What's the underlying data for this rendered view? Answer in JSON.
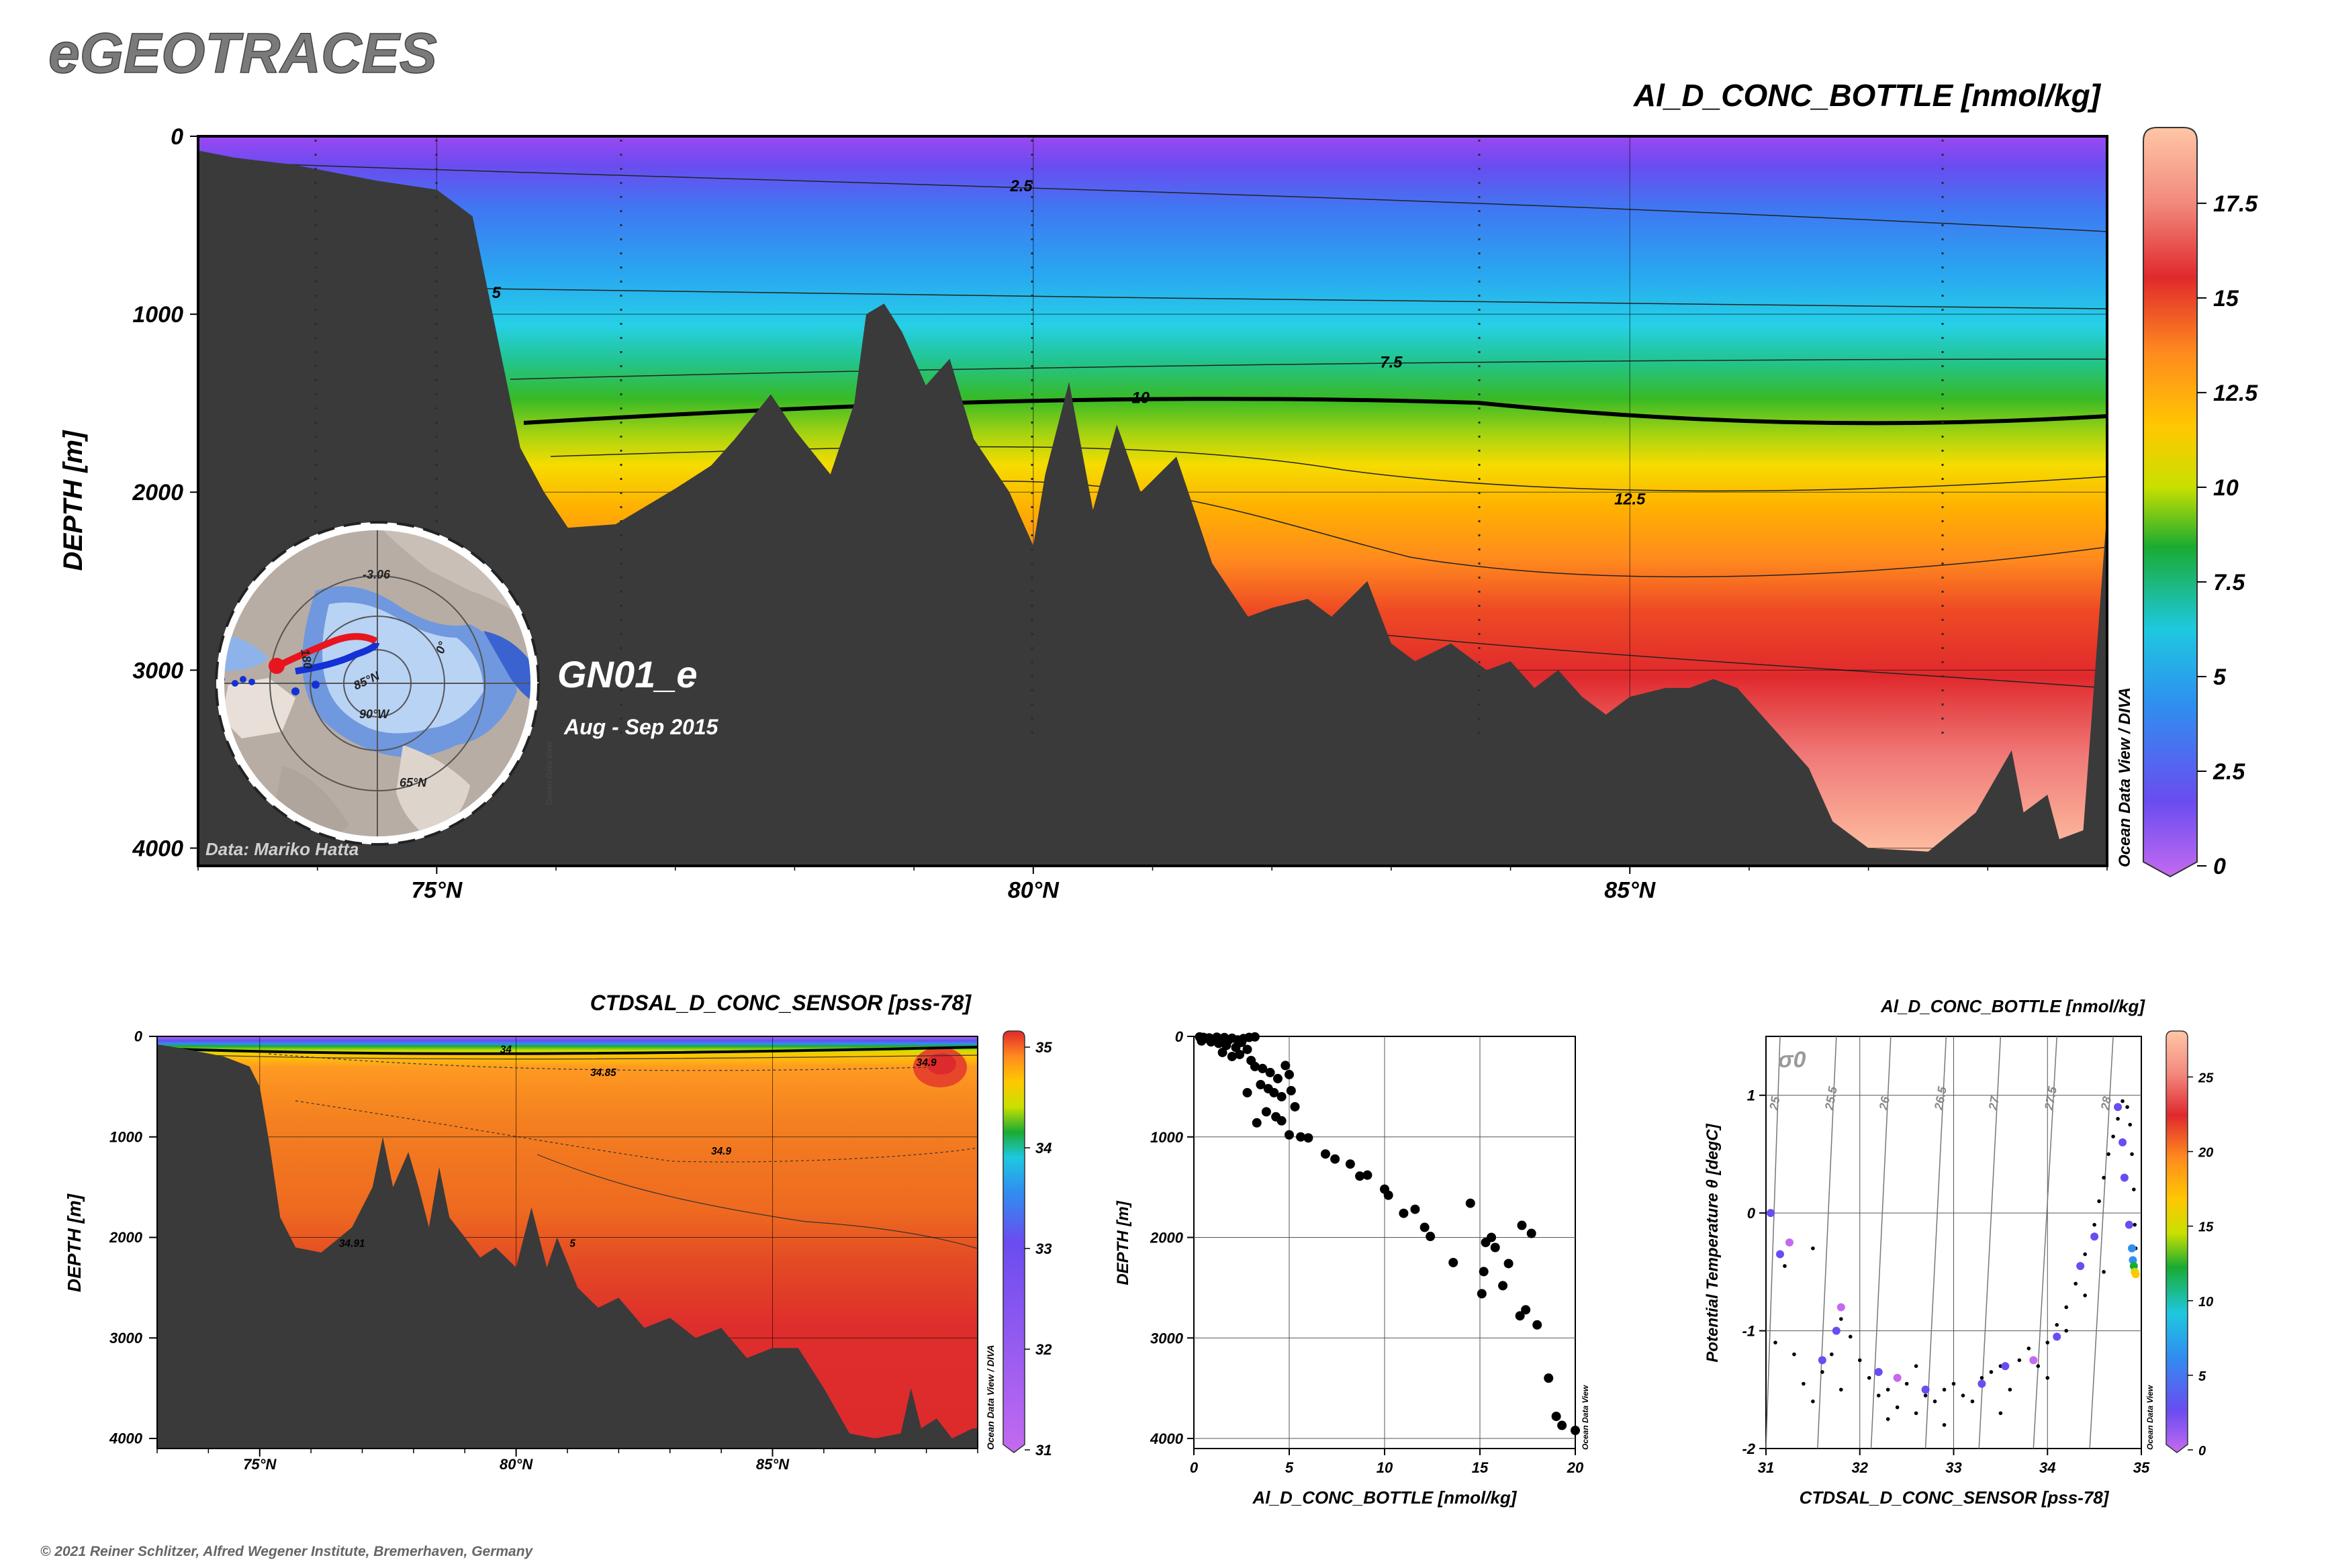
{
  "header": {
    "brand": "eGEOTRACES",
    "copyright": "© 2021 Reiner Schlitzer, Alfred Wegener Institute, Bremerhaven, Germany"
  },
  "colors": {
    "land": "#3a3a3a",
    "palette": [
      "#ffc6a6",
      "#f28a7e",
      "#e0292d",
      "#ff8a1e",
      "#ffc800",
      "#c8e000",
      "#1aab32",
      "#1ec8e0",
      "#2f8ff0",
      "#6a4cf0",
      "#c46af0"
    ]
  },
  "main": {
    "section_label": "GN01_e",
    "cruise_dates": "Aug - Sep 2015",
    "data_credit": "Data: Mariko Hatta",
    "watermark": "Ocean Data View / DIVA",
    "map_labels": [
      "-3.06",
      "180",
      "85°N",
      "90°W",
      "0°",
      "65°N"
    ],
    "map_watermark": "Ocean Data View"
  },
  "chart_data": [
    {
      "type": "heatmap",
      "title": "Al_D_CONC_BOTTLE [nmol/kg]",
      "ylabel": "DEPTH [m]",
      "xlabel": "",
      "x_ticks": [
        "75°N",
        "80°N",
        "85°N"
      ],
      "x_tick_values": [
        75,
        80,
        85
      ],
      "y_ticks": [
        "0",
        "1000",
        "2000",
        "3000",
        "4000"
      ],
      "y_tick_values": [
        0,
        1000,
        2000,
        3000,
        4000
      ],
      "xlim": [
        73,
        89
      ],
      "ylim": [
        4100,
        0
      ],
      "colorbar": {
        "ticks": [
          "0",
          "2.5",
          "5",
          "7.5",
          "10",
          "12.5",
          "15",
          "17.5"
        ],
        "min": 0,
        "max": 19.5
      },
      "contour_labels": [
        {
          "text": "2.5",
          "x": 79.9,
          "y": 270
        },
        {
          "text": "5",
          "x": 75.5,
          "y": 870
        },
        {
          "text": "7.5",
          "x": 83.0,
          "y": 1260
        },
        {
          "text": "10",
          "x": 80.9,
          "y": 1460
        },
        {
          "text": "12.5",
          "x": 85.0,
          "y": 2030
        }
      ],
      "bathymetry": [
        [
          73,
          80
        ],
        [
          73.3,
          120
        ],
        [
          73.8,
          160
        ],
        [
          74.5,
          250
        ],
        [
          75.0,
          300
        ],
        [
          75.3,
          450
        ],
        [
          75.5,
          1100
        ],
        [
          75.7,
          1750
        ],
        [
          75.9,
          2000
        ],
        [
          76.1,
          2200
        ],
        [
          76.5,
          2180
        ],
        [
          77.0,
          1980
        ],
        [
          77.3,
          1850
        ],
        [
          77.5,
          1700
        ],
        [
          77.8,
          1450
        ],
        [
          78.0,
          1650
        ],
        [
          78.3,
          1900
        ],
        [
          78.5,
          1500
        ],
        [
          78.6,
          1000
        ],
        [
          78.75,
          940
        ],
        [
          78.9,
          1100
        ],
        [
          79.1,
          1400
        ],
        [
          79.3,
          1250
        ],
        [
          79.5,
          1700
        ],
        [
          79.8,
          2000
        ],
        [
          80.0,
          2300
        ],
        [
          80.1,
          1900
        ],
        [
          80.3,
          1380
        ],
        [
          80.5,
          2100
        ],
        [
          80.7,
          1620
        ],
        [
          80.9,
          2000
        ],
        [
          81.2,
          1800
        ],
        [
          81.5,
          2400
        ],
        [
          81.8,
          2700
        ],
        [
          82.0,
          2650
        ],
        [
          82.3,
          2600
        ],
        [
          82.5,
          2700
        ],
        [
          82.8,
          2500
        ],
        [
          83.0,
          2850
        ],
        [
          83.2,
          2950
        ],
        [
          83.5,
          2850
        ],
        [
          83.8,
          3000
        ],
        [
          84.0,
          2950
        ],
        [
          84.2,
          3100
        ],
        [
          84.4,
          3000
        ],
        [
          84.6,
          3150
        ],
        [
          84.8,
          3250
        ],
        [
          85.0,
          3150
        ],
        [
          85.3,
          3100
        ],
        [
          85.5,
          3100
        ],
        [
          85.7,
          3050
        ],
        [
          85.9,
          3100
        ],
        [
          86.1,
          3250
        ],
        [
          86.3,
          3400
        ],
        [
          86.5,
          3550
        ],
        [
          86.7,
          3850
        ],
        [
          87.0,
          4000
        ],
        [
          87.5,
          4020
        ],
        [
          87.9,
          3800
        ],
        [
          88.2,
          3450
        ],
        [
          88.3,
          3800
        ],
        [
          88.5,
          3700
        ],
        [
          88.6,
          3950
        ],
        [
          88.8,
          3900
        ],
        [
          89.0,
          2100
        ]
      ]
    },
    {
      "type": "heatmap",
      "title": "CTDSAL_D_CONC_SENSOR [pss-78]",
      "ylabel": "DEPTH [m]",
      "xlabel": "",
      "x_ticks": [
        "75°N",
        "80°N",
        "85°N"
      ],
      "x_tick_values": [
        75,
        80,
        85
      ],
      "y_ticks": [
        "0",
        "1000",
        "2000",
        "3000",
        "4000"
      ],
      "y_tick_values": [
        0,
        1000,
        2000,
        3000,
        4000
      ],
      "xlim": [
        73,
        89
      ],
      "ylim": [
        4100,
        0
      ],
      "colorbar": {
        "ticks": [
          "31",
          "32",
          "33",
          "34",
          "35"
        ],
        "min": 31,
        "max": 35
      },
      "contour_labels": [
        {
          "text": "34",
          "x": 79.8,
          "y": 120
        },
        {
          "text": "34.85",
          "x": 81.7,
          "y": 350
        },
        {
          "text": "34.9",
          "x": 88.0,
          "y": 250
        },
        {
          "text": "34.9",
          "x": 84.0,
          "y": 1130
        },
        {
          "text": "34.91",
          "x": 76.8,
          "y": 2050
        },
        {
          "text": "5",
          "x": 81.1,
          "y": 2050
        }
      ],
      "bathymetry": [
        [
          73,
          80
        ],
        [
          73.5,
          120
        ],
        [
          74.3,
          200
        ],
        [
          74.8,
          300
        ],
        [
          75.0,
          500
        ],
        [
          75.2,
          1100
        ],
        [
          75.4,
          1800
        ],
        [
          75.7,
          2100
        ],
        [
          76.2,
          2150
        ],
        [
          76.8,
          1900
        ],
        [
          77.2,
          1500
        ],
        [
          77.4,
          1000
        ],
        [
          77.6,
          1500
        ],
        [
          77.9,
          1150
        ],
        [
          78.1,
          1500
        ],
        [
          78.3,
          1900
        ],
        [
          78.5,
          1300
        ],
        [
          78.7,
          1800
        ],
        [
          79.0,
          2000
        ],
        [
          79.3,
          2200
        ],
        [
          79.6,
          2100
        ],
        [
          80.0,
          2300
        ],
        [
          80.3,
          1700
        ],
        [
          80.6,
          2300
        ],
        [
          80.8,
          2000
        ],
        [
          81.2,
          2500
        ],
        [
          81.6,
          2700
        ],
        [
          82.0,
          2600
        ],
        [
          82.5,
          2900
        ],
        [
          83.0,
          2800
        ],
        [
          83.5,
          3000
        ],
        [
          84.0,
          2900
        ],
        [
          84.5,
          3200
        ],
        [
          85.0,
          3100
        ],
        [
          85.5,
          3100
        ],
        [
          86.0,
          3500
        ],
        [
          86.5,
          3950
        ],
        [
          87.0,
          4000
        ],
        [
          87.5,
          3950
        ],
        [
          87.7,
          3500
        ],
        [
          87.9,
          3900
        ],
        [
          88.2,
          3800
        ],
        [
          88.5,
          4000
        ],
        [
          88.9,
          3900
        ],
        [
          89,
          3900
        ]
      ]
    },
    {
      "type": "scatter",
      "title": "",
      "xlabel": "Al_D_CONC_BOTTLE [nmol/kg]",
      "ylabel": "DEPTH [m]",
      "xlim": [
        0,
        20
      ],
      "ylim": [
        4100,
        0
      ],
      "x_ticks": [
        "0",
        "5",
        "10",
        "15",
        "20"
      ],
      "x_tick_values": [
        0,
        5,
        10,
        15,
        20
      ],
      "y_ticks": [
        "0",
        "1000",
        "2000",
        "3000",
        "4000"
      ],
      "y_tick_values": [
        0,
        1000,
        2000,
        3000,
        4000
      ],
      "watermark": "Ocean Data View",
      "points": [
        [
          0.3,
          5
        ],
        [
          0.5,
          10
        ],
        [
          0.6,
          20
        ],
        [
          0.8,
          15
        ],
        [
          1.0,
          30
        ],
        [
          1.2,
          8
        ],
        [
          1.4,
          25
        ],
        [
          1.6,
          12
        ],
        [
          1.8,
          40
        ],
        [
          2.0,
          18
        ],
        [
          2.3,
          35
        ],
        [
          2.6,
          22
        ],
        [
          2.9,
          10
        ],
        [
          3.2,
          5
        ],
        [
          0.4,
          45
        ],
        [
          0.9,
          55
        ],
        [
          1.3,
          70
        ],
        [
          1.7,
          90
        ],
        [
          2.2,
          110
        ],
        [
          2.5,
          60
        ],
        [
          2.8,
          130
        ],
        [
          1.5,
          160
        ],
        [
          2.0,
          200
        ],
        [
          2.4,
          180
        ],
        [
          3.0,
          240
        ],
        [
          3.2,
          300
        ],
        [
          3.6,
          320
        ],
        [
          4.0,
          360
        ],
        [
          4.4,
          420
        ],
        [
          4.8,
          290
        ],
        [
          5.0,
          380
        ],
        [
          3.5,
          480
        ],
        [
          3.9,
          520
        ],
        [
          4.2,
          560
        ],
        [
          2.8,
          560
        ],
        [
          4.6,
          600
        ],
        [
          5.1,
          540
        ],
        [
          5.3,
          700
        ],
        [
          3.8,
          750
        ],
        [
          4.3,
          800
        ],
        [
          4.6,
          840
        ],
        [
          3.3,
          860
        ],
        [
          5.0,
          980
        ],
        [
          5.6,
          1000
        ],
        [
          6.0,
          1010
        ],
        [
          6.9,
          1170
        ],
        [
          7.4,
          1220
        ],
        [
          8.2,
          1270
        ],
        [
          8.7,
          1390
        ],
        [
          9.1,
          1380
        ],
        [
          10.2,
          1580
        ],
        [
          10.0,
          1520
        ],
        [
          11.0,
          1760
        ],
        [
          11.6,
          1720
        ],
        [
          12.1,
          1900
        ],
        [
          12.4,
          1990
        ],
        [
          13.6,
          2250
        ],
        [
          14.5,
          1660
        ],
        [
          15.3,
          2050
        ],
        [
          15.6,
          2000
        ],
        [
          15.8,
          2100
        ],
        [
          15.2,
          2340
        ],
        [
          15.1,
          2560
        ],
        [
          16.2,
          2480
        ],
        [
          16.5,
          2260
        ],
        [
          17.1,
          2780
        ],
        [
          17.4,
          2720
        ],
        [
          17.2,
          1880
        ],
        [
          17.7,
          1960
        ],
        [
          18.0,
          2870
        ],
        [
          18.6,
          3400
        ],
        [
          19.0,
          3780
        ],
        [
          19.3,
          3870
        ],
        [
          20.0,
          3920
        ]
      ]
    },
    {
      "type": "scatter",
      "title": "Al_D_CONC_BOTTLE [nmol/kg]",
      "xlabel": "CTDSAL_D_CONC_SENSOR [pss-78]",
      "ylabel": "Potential Temperature θ [degC]",
      "xlim": [
        31,
        35
      ],
      "ylim": [
        -2,
        1.5
      ],
      "x_ticks": [
        "31",
        "32",
        "33",
        "34",
        "35"
      ],
      "x_tick_values": [
        31,
        32,
        33,
        34,
        35
      ],
      "y_ticks": [
        "-2",
        "-1",
        "0",
        "1"
      ],
      "y_tick_values": [
        -2,
        -1,
        0,
        1
      ],
      "isopycnal_label": "σ0",
      "isopycnals": [
        "25",
        "25.5",
        "26",
        "26.5",
        "27",
        "27.5",
        "28"
      ],
      "colorbar": {
        "ticks": [
          "0",
          "5",
          "10",
          "15",
          "20",
          "25"
        ],
        "min": 0,
        "max": 27
      },
      "watermark": "Ocean Data View",
      "small_points": [
        [
          31.1,
          -1.1
        ],
        [
          31.3,
          -1.2
        ],
        [
          31.4,
          -1.45
        ],
        [
          31.5,
          -1.6
        ],
        [
          31.6,
          -1.35
        ],
        [
          31.7,
          -1.2
        ],
        [
          31.8,
          -1.5
        ],
        [
          31.9,
          -1.05
        ],
        [
          32.0,
          -1.25
        ],
        [
          32.1,
          -1.4
        ],
        [
          32.2,
          -1.55
        ],
        [
          32.3,
          -1.5
        ],
        [
          32.4,
          -1.65
        ],
        [
          32.5,
          -1.45
        ],
        [
          32.6,
          -1.3
        ],
        [
          32.7,
          -1.55
        ],
        [
          32.8,
          -1.6
        ],
        [
          32.9,
          -1.5
        ],
        [
          33.0,
          -1.45
        ],
        [
          33.1,
          -1.55
        ],
        [
          33.2,
          -1.6
        ],
        [
          33.3,
          -1.4
        ],
        [
          33.4,
          -1.35
        ],
        [
          33.5,
          -1.3
        ],
        [
          33.6,
          -1.5
        ],
        [
          33.7,
          -1.25
        ],
        [
          33.8,
          -1.15
        ],
        [
          33.9,
          -1.3
        ],
        [
          34.0,
          -1.1
        ],
        [
          34.1,
          -0.95
        ],
        [
          34.2,
          -0.8
        ],
        [
          34.3,
          -0.6
        ],
        [
          34.4,
          -0.35
        ],
        [
          34.5,
          -0.1
        ],
        [
          34.55,
          0.1
        ],
        [
          34.6,
          0.3
        ],
        [
          34.65,
          0.5
        ],
        [
          34.7,
          0.65
        ],
        [
          34.75,
          0.8
        ],
        [
          34.8,
          0.95
        ],
        [
          34.85,
          0.9
        ],
        [
          34.88,
          0.75
        ],
        [
          34.9,
          0.5
        ],
        [
          34.92,
          0.2
        ],
        [
          34.93,
          -0.1
        ],
        [
          34.94,
          -0.3
        ],
        [
          31.2,
          -0.45
        ],
        [
          31.5,
          -0.3
        ],
        [
          31.8,
          -0.9
        ],
        [
          32.3,
          -1.75
        ],
        [
          32.6,
          -1.7
        ],
        [
          32.9,
          -1.8
        ],
        [
          33.5,
          -1.7
        ],
        [
          34.0,
          -1.4
        ],
        [
          34.2,
          -1.0
        ],
        [
          34.4,
          -0.7
        ],
        [
          34.6,
          -0.5
        ]
      ],
      "large_points": [
        {
          "x": 31.05,
          "y": 0.0,
          "c": 3
        },
        {
          "x": 31.15,
          "y": -0.35,
          "c": 3
        },
        {
          "x": 31.25,
          "y": -0.25,
          "c": 2
        },
        {
          "x": 31.75,
          "y": -1.0,
          "c": 3
        },
        {
          "x": 31.8,
          "y": -0.8,
          "c": 2
        },
        {
          "x": 31.6,
          "y": -1.25,
          "c": 3
        },
        {
          "x": 32.2,
          "y": -1.35,
          "c": 3
        },
        {
          "x": 32.4,
          "y": -1.4,
          "c": 2
        },
        {
          "x": 32.7,
          "y": -1.5,
          "c": 3
        },
        {
          "x": 33.3,
          "y": -1.45,
          "c": 3
        },
        {
          "x": 33.55,
          "y": -1.3,
          "c": 3
        },
        {
          "x": 33.85,
          "y": -1.25,
          "c": 2
        },
        {
          "x": 34.1,
          "y": -1.05,
          "c": 3
        },
        {
          "x": 34.35,
          "y": -0.45,
          "c": 3
        },
        {
          "x": 34.5,
          "y": -0.2,
          "c": 4
        },
        {
          "x": 34.75,
          "y": 0.9,
          "c": 3
        },
        {
          "x": 34.8,
          "y": 0.6,
          "c": 4
        },
        {
          "x": 34.82,
          "y": 0.3,
          "c": 3
        },
        {
          "x": 34.87,
          "y": -0.1,
          "c": 3
        },
        {
          "x": 34.9,
          "y": -0.3,
          "c": 5
        },
        {
          "x": 34.91,
          "y": -0.4,
          "c": 7
        },
        {
          "x": 34.92,
          "y": -0.45,
          "c": 10
        },
        {
          "x": 34.93,
          "y": -0.5,
          "c": 13
        },
        {
          "x": 34.94,
          "y": -0.52,
          "c": 16
        }
      ]
    }
  ]
}
